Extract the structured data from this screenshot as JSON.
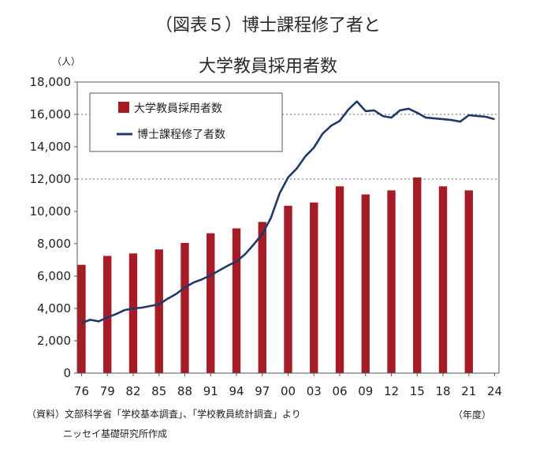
{
  "chart_data": {
    "type": "bar+line",
    "title": "（図表５）博士課程修了者と",
    "subtitle": "大学教員採用者数",
    "yunit": "（人）",
    "xunit": "（年度）",
    "ylim": [
      0,
      18000
    ],
    "yticks": [
      0,
      2000,
      4000,
      6000,
      8000,
      10000,
      12000,
      14000,
      16000,
      18000
    ],
    "ytick_labels": [
      "0",
      "2,000",
      "4,000",
      "6,000",
      "8,000",
      "10,000",
      "12,000",
      "14,000",
      "16,000",
      "18,000"
    ],
    "x_years": [
      1976,
      1977,
      1978,
      1979,
      1980,
      1981,
      1982,
      1983,
      1984,
      1985,
      1986,
      1987,
      1988,
      1989,
      1990,
      1991,
      1992,
      1993,
      1994,
      1995,
      1996,
      1997,
      1998,
      1999,
      2000,
      2001,
      2002,
      2003,
      2004,
      2005,
      2006,
      2007,
      2008,
      2009,
      2010,
      2011,
      2012,
      2013,
      2014,
      2015,
      2016,
      2017,
      2018,
      2019,
      2020,
      2021,
      2022,
      2023,
      2024
    ],
    "xtick_labels": [
      "76",
      "79",
      "82",
      "85",
      "88",
      "91",
      "94",
      "97",
      "00",
      "03",
      "06",
      "09",
      "12",
      "15",
      "18",
      "21",
      "24"
    ],
    "dashed_gridlines": [
      12000,
      16000
    ],
    "legend_position": "top-left",
    "series": [
      {
        "name": "大学教員採用者数",
        "type": "bar",
        "color": "#a61c26",
        "x": [
          1976,
          1979,
          1982,
          1985,
          1988,
          1991,
          1994,
          1997,
          2000,
          2003,
          2006,
          2009,
          2012,
          2015,
          2018,
          2021
        ],
        "values": [
          6700,
          7250,
          7400,
          7650,
          8050,
          8650,
          8950,
          9350,
          10350,
          10550,
          11550,
          11050,
          11300,
          12100,
          11550,
          11300
        ]
      },
      {
        "name": "博士課程修了者数",
        "type": "line",
        "color": "#1f3a68",
        "x": [
          1976,
          1977,
          1978,
          1979,
          1980,
          1981,
          1982,
          1983,
          1984,
          1985,
          1986,
          1987,
          1988,
          1989,
          1990,
          1991,
          1992,
          1993,
          1994,
          1995,
          1996,
          1997,
          1998,
          1999,
          2000,
          2001,
          2002,
          2003,
          2004,
          2005,
          2006,
          2007,
          2008,
          2009,
          2010,
          2011,
          2012,
          2013,
          2014,
          2015,
          2016,
          2017,
          2018,
          2019,
          2020,
          2021,
          2022,
          2023,
          2024
        ],
        "values": [
          3100,
          3300,
          3200,
          3450,
          3650,
          3900,
          4000,
          4050,
          4150,
          4250,
          4600,
          4900,
          5300,
          5600,
          5800,
          6050,
          6350,
          6650,
          6900,
          7350,
          7950,
          8600,
          9600,
          11100,
          12100,
          12650,
          13400,
          13950,
          14800,
          15300,
          15600,
          16300,
          16800,
          16200,
          16250,
          15900,
          15800,
          16250,
          16350,
          16100,
          15800,
          15750,
          15700,
          15650,
          15550,
          15950,
          15900,
          15850,
          15700
        ]
      }
    ]
  },
  "source": {
    "line1": "（資料）文部科学省「学校基本調査」、「学校教員統計調査」より",
    "line2": "ニッセイ基礎研究所作成"
  }
}
